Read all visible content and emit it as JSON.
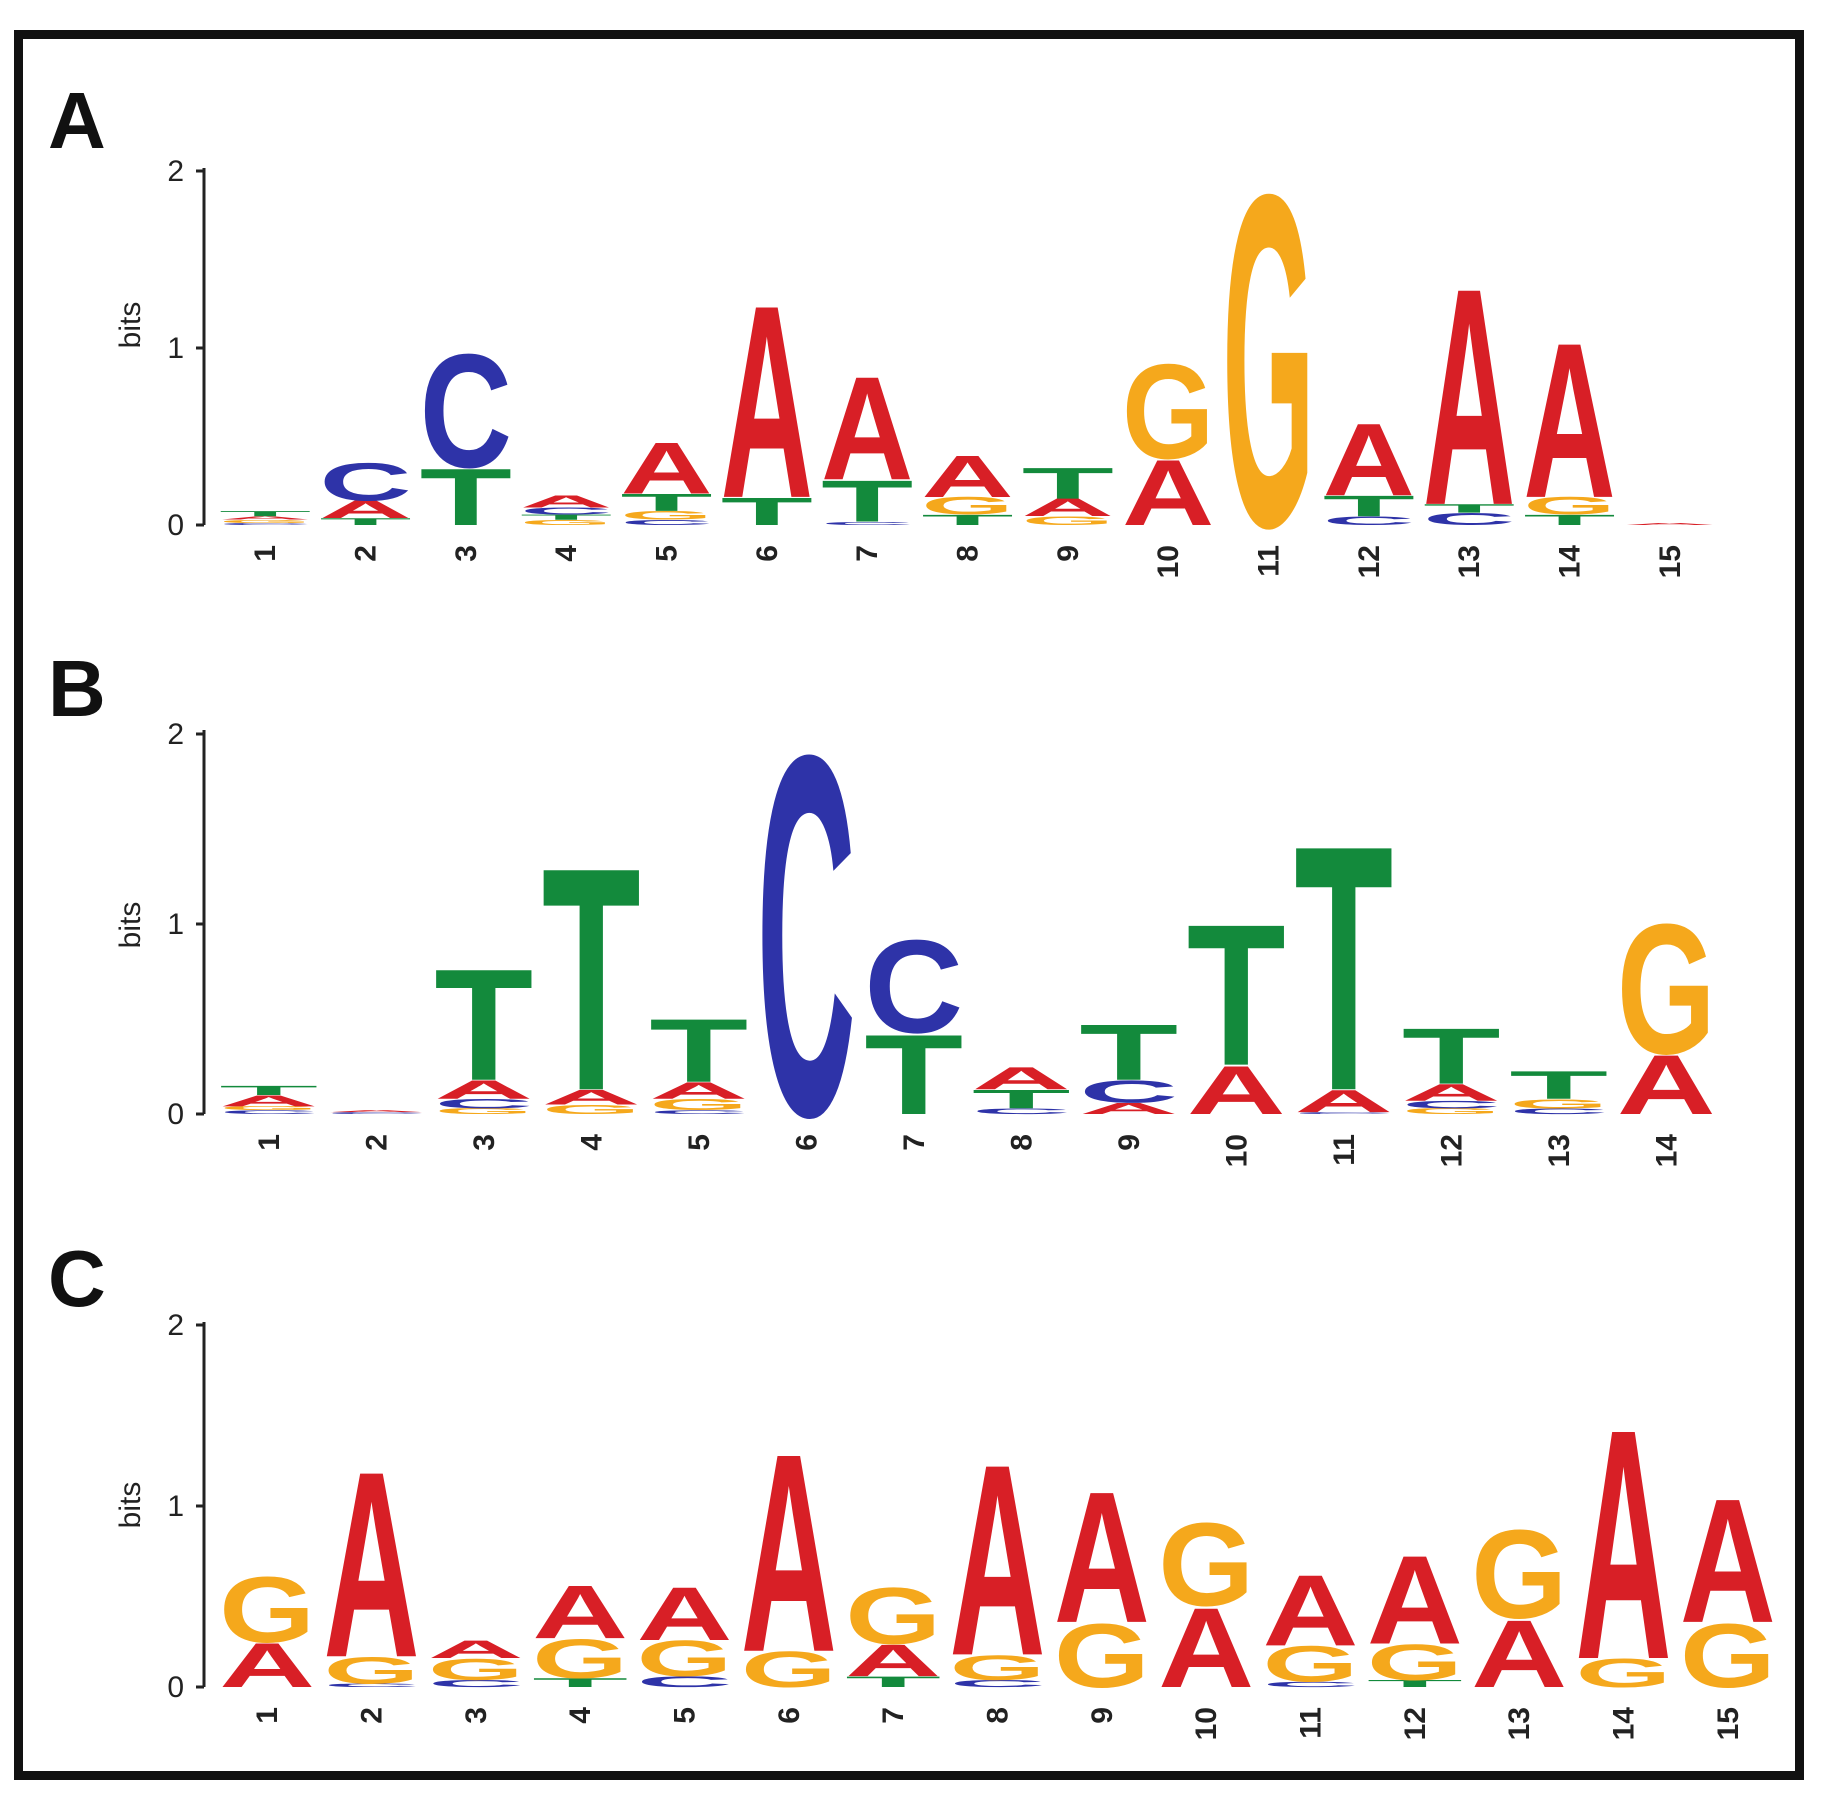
{
  "colors": {
    "A": "#d81f26",
    "C": "#2e33a8",
    "G": "#f5a81c",
    "T": "#138a3c"
  },
  "chart_data": [
    {
      "type": "sequence-logo",
      "panel": "A",
      "ylabel": "bits",
      "ylim": [
        0,
        2
      ],
      "yticks": [
        "0",
        "1",
        "2"
      ],
      "positions": [
        {
          "label": "1",
          "letters": [
            {
              "b": "C",
              "h": 0.01
            },
            {
              "b": "G",
              "h": 0.02
            },
            {
              "b": "A",
              "h": 0.02
            },
            {
              "b": "T",
              "h": 0.03
            }
          ]
        },
        {
          "label": "2",
          "letters": [
            {
              "b": "T",
              "h": 0.04
            },
            {
              "b": "A",
              "h": 0.1
            },
            {
              "b": "C",
              "h": 0.22
            }
          ]
        },
        {
          "label": "3",
          "letters": [
            {
              "b": "T",
              "h": 0.33
            },
            {
              "b": "C",
              "h": 0.66
            }
          ]
        },
        {
          "label": "4",
          "letters": [
            {
              "b": "G",
              "h": 0.03
            },
            {
              "b": "T",
              "h": 0.03
            },
            {
              "b": "C",
              "h": 0.04
            },
            {
              "b": "A",
              "h": 0.07
            }
          ]
        },
        {
          "label": "5",
          "letters": [
            {
              "b": "C",
              "h": 0.03
            },
            {
              "b": "G",
              "h": 0.05
            },
            {
              "b": "T",
              "h": 0.1
            },
            {
              "b": "A",
              "h": 0.3
            }
          ]
        },
        {
          "label": "6",
          "letters": [
            {
              "b": "T",
              "h": 0.16
            },
            {
              "b": "A",
              "h": 1.12
            }
          ]
        },
        {
          "label": "7",
          "letters": [
            {
              "b": "C",
              "h": 0.02
            },
            {
              "b": "T",
              "h": 0.24
            },
            {
              "b": "A",
              "h": 0.6
            }
          ]
        },
        {
          "label": "8",
          "letters": [
            {
              "b": "T",
              "h": 0.06
            },
            {
              "b": "G",
              "h": 0.1
            },
            {
              "b": "A",
              "h": 0.24
            }
          ]
        },
        {
          "label": "9",
          "letters": [
            {
              "b": "G",
              "h": 0.05
            },
            {
              "b": "A",
              "h": 0.1
            },
            {
              "b": "T",
              "h": 0.18
            }
          ]
        },
        {
          "label": "10",
          "letters": [
            {
              "b": "A",
              "h": 0.38
            },
            {
              "b": "G",
              "h": 0.55
            }
          ]
        },
        {
          "label": "11",
          "letters": [
            {
              "b": "G",
              "h": 1.93
            }
          ]
        },
        {
          "label": "12",
          "letters": [
            {
              "b": "C",
              "h": 0.05
            },
            {
              "b": "T",
              "h": 0.12
            },
            {
              "b": "A",
              "h": 0.42
            }
          ]
        },
        {
          "label": "13",
          "letters": [
            {
              "b": "C",
              "h": 0.07
            },
            {
              "b": "T",
              "h": 0.05
            },
            {
              "b": "A",
              "h": 1.26
            }
          ]
        },
        {
          "label": "14",
          "letters": [
            {
              "b": "T",
              "h": 0.06
            },
            {
              "b": "G",
              "h": 0.1
            },
            {
              "b": "A",
              "h": 0.9
            }
          ]
        },
        {
          "label": "15",
          "letters": [
            {
              "b": "A",
              "h": 0.01
            }
          ]
        }
      ]
    },
    {
      "type": "sequence-logo",
      "panel": "B",
      "ylabel": "bits",
      "ylim": [
        0,
        2
      ],
      "yticks": [
        "0",
        "1",
        "2"
      ],
      "positions": [
        {
          "label": "1",
          "letters": [
            {
              "b": "C",
              "h": 0.02
            },
            {
              "b": "G",
              "h": 0.02
            },
            {
              "b": "A",
              "h": 0.06
            },
            {
              "b": "T",
              "h": 0.05
            }
          ]
        },
        {
          "label": "2",
          "letters": [
            {
              "b": "C",
              "h": 0.01
            },
            {
              "b": "A",
              "h": 0.01
            }
          ]
        },
        {
          "label": "3",
          "letters": [
            {
              "b": "G",
              "h": 0.03
            },
            {
              "b": "C",
              "h": 0.05
            },
            {
              "b": "A",
              "h": 0.1
            },
            {
              "b": "T",
              "h": 0.6
            }
          ]
        },
        {
          "label": "4",
          "letters": [
            {
              "b": "G",
              "h": 0.05
            },
            {
              "b": "A",
              "h": 0.08
            },
            {
              "b": "T",
              "h": 1.2
            }
          ]
        },
        {
          "label": "5",
          "letters": [
            {
              "b": "C",
              "h": 0.02
            },
            {
              "b": "G",
              "h": 0.06
            },
            {
              "b": "A",
              "h": 0.09
            },
            {
              "b": "T",
              "h": 0.34
            }
          ]
        },
        {
          "label": "6",
          "letters": [
            {
              "b": "C",
              "h": 1.94
            }
          ]
        },
        {
          "label": "7",
          "letters": [
            {
              "b": "T",
              "h": 0.43
            },
            {
              "b": "C",
              "h": 0.5
            }
          ]
        },
        {
          "label": "8",
          "letters": [
            {
              "b": "C",
              "h": 0.03
            },
            {
              "b": "T",
              "h": 0.1
            },
            {
              "b": "A",
              "h": 0.12
            }
          ]
        },
        {
          "label": "9",
          "letters": [
            {
              "b": "A",
              "h": 0.06
            },
            {
              "b": "C",
              "h": 0.12
            },
            {
              "b": "T",
              "h": 0.3
            }
          ]
        },
        {
          "label": "10",
          "letters": [
            {
              "b": "A",
              "h": 0.26
            },
            {
              "b": "T",
              "h": 0.76
            }
          ]
        },
        {
          "label": "11",
          "letters": [
            {
              "b": "C",
              "h": 0.01
            },
            {
              "b": "A",
              "h": 0.12
            },
            {
              "b": "T",
              "h": 1.32
            }
          ]
        },
        {
          "label": "12",
          "letters": [
            {
              "b": "G",
              "h": 0.03
            },
            {
              "b": "C",
              "h": 0.04
            },
            {
              "b": "A",
              "h": 0.09
            },
            {
              "b": "T",
              "h": 0.3
            }
          ]
        },
        {
          "label": "13",
          "letters": [
            {
              "b": "C",
              "h": 0.03
            },
            {
              "b": "G",
              "h": 0.05
            },
            {
              "b": "T",
              "h": 0.15
            }
          ]
        },
        {
          "label": "14",
          "letters": [
            {
              "b": "A",
              "h": 0.32
            },
            {
              "b": "G",
              "h": 0.7
            }
          ]
        }
      ]
    },
    {
      "type": "sequence-logo",
      "panel": "C",
      "ylabel": "bits",
      "ylim": [
        0,
        2
      ],
      "yticks": [
        "0",
        "1",
        "2"
      ],
      "positions": [
        {
          "label": "1",
          "letters": [
            {
              "b": "A",
              "h": 0.25
            },
            {
              "b": "G",
              "h": 0.37
            }
          ]
        },
        {
          "label": "2",
          "letters": [
            {
              "b": "C",
              "h": 0.02
            },
            {
              "b": "G",
              "h": 0.15
            },
            {
              "b": "A",
              "h": 1.05
            }
          ]
        },
        {
          "label": "3",
          "letters": [
            {
              "b": "C",
              "h": 0.04
            },
            {
              "b": "G",
              "h": 0.12
            },
            {
              "b": "A",
              "h": 0.1
            }
          ]
        },
        {
          "label": "4",
          "letters": [
            {
              "b": "T",
              "h": 0.05
            },
            {
              "b": "G",
              "h": 0.22
            },
            {
              "b": "A",
              "h": 0.3
            }
          ]
        },
        {
          "label": "5",
          "letters": [
            {
              "b": "C",
              "h": 0.06
            },
            {
              "b": "G",
              "h": 0.2
            },
            {
              "b": "A",
              "h": 0.3
            }
          ]
        },
        {
          "label": "6",
          "letters": [
            {
              "b": "G",
              "h": 0.2
            },
            {
              "b": "A",
              "h": 1.12
            }
          ]
        },
        {
          "label": "7",
          "letters": [
            {
              "b": "T",
              "h": 0.06
            },
            {
              "b": "A",
              "h": 0.18
            },
            {
              "b": "G",
              "h": 0.32
            }
          ]
        },
        {
          "label": "8",
          "letters": [
            {
              "b": "C",
              "h": 0.04
            },
            {
              "b": "G",
              "h": 0.14
            },
            {
              "b": "A",
              "h": 1.08
            }
          ]
        },
        {
          "label": "9",
          "letters": [
            {
              "b": "G",
              "h": 0.36
            },
            {
              "b": "A",
              "h": 0.74
            }
          ]
        },
        {
          "label": "10",
          "letters": [
            {
              "b": "A",
              "h": 0.45
            },
            {
              "b": "G",
              "h": 0.47
            }
          ]
        },
        {
          "label": "11",
          "letters": [
            {
              "b": "C",
              "h": 0.03
            },
            {
              "b": "G",
              "h": 0.2
            },
            {
              "b": "A",
              "h": 0.4
            }
          ]
        },
        {
          "label": "12",
          "letters": [
            {
              "b": "T",
              "h": 0.04
            },
            {
              "b": "G",
              "h": 0.2
            },
            {
              "b": "A",
              "h": 0.5
            }
          ]
        },
        {
          "label": "13",
          "letters": [
            {
              "b": "A",
              "h": 0.38
            },
            {
              "b": "G",
              "h": 0.5
            }
          ]
        },
        {
          "label": "14",
          "letters": [
            {
              "b": "G",
              "h": 0.16
            },
            {
              "b": "A",
              "h": 1.3
            }
          ]
        },
        {
          "label": "15",
          "letters": [
            {
              "b": "G",
              "h": 0.36
            },
            {
              "b": "A",
              "h": 0.7
            }
          ]
        }
      ]
    }
  ]
}
